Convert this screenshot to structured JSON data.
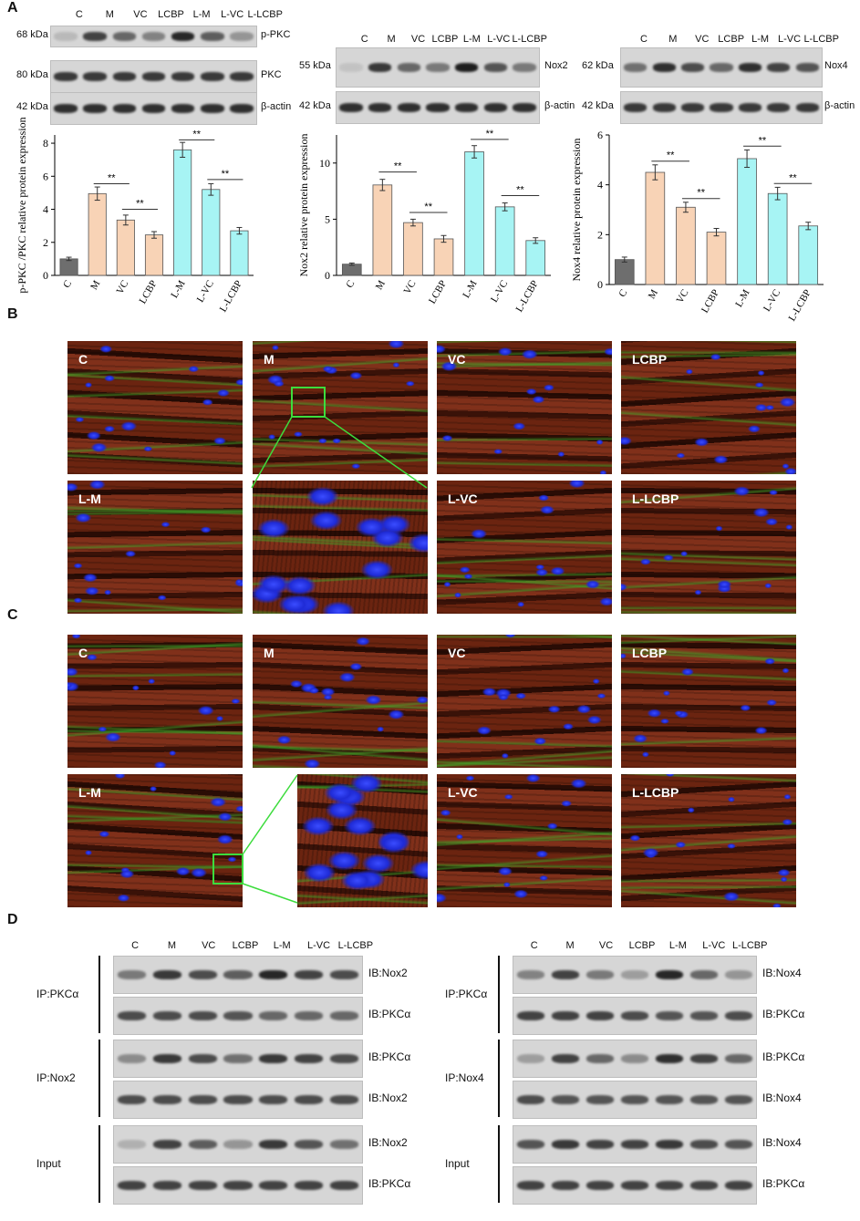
{
  "panels": {
    "A": "A",
    "B": "B",
    "C": "C",
    "D": "D"
  },
  "lanes": [
    "C",
    "M",
    "VC",
    "LCBP",
    "L-M",
    "L-VC",
    "L-LCBP"
  ],
  "bar_colors": [
    "#6e6e6e",
    "#f8d3b6",
    "#f8d3b6",
    "#f8d3b6",
    "#a7f4f4",
    "#a7f4f4",
    "#a7f4f4"
  ],
  "sig": "**",
  "blots_a": {
    "left": {
      "kda": [
        "68 kDa",
        "80 kDa",
        "42 kDa"
      ],
      "names": [
        "p-PKC",
        "PKC",
        "β-actin"
      ],
      "intensity": [
        [
          0.15,
          0.8,
          0.6,
          0.45,
          0.95,
          0.65,
          0.35
        ],
        [
          0.85,
          0.85,
          0.85,
          0.85,
          0.85,
          0.85,
          0.85
        ],
        [
          0.9,
          0.9,
          0.9,
          0.9,
          0.9,
          0.9,
          0.9
        ]
      ]
    },
    "mid": {
      "kda": [
        "55 kDa",
        "42 kDa"
      ],
      "names": [
        "Nox2",
        "β-actin"
      ],
      "intensity": [
        [
          0.1,
          0.85,
          0.6,
          0.5,
          1.0,
          0.7,
          0.5
        ],
        [
          0.9,
          0.9,
          0.9,
          0.9,
          0.9,
          0.9,
          0.9
        ]
      ]
    },
    "right": {
      "kda": [
        "62 kDa",
        "42 kDa"
      ],
      "names": [
        "Nox4",
        "β-actin"
      ],
      "intensity": [
        [
          0.55,
          0.9,
          0.75,
          0.6,
          0.9,
          0.8,
          0.7
        ],
        [
          0.85,
          0.85,
          0.85,
          0.85,
          0.85,
          0.85,
          0.85
        ]
      ]
    }
  },
  "chart_data": [
    {
      "type": "bar",
      "categories": [
        "C",
        "M",
        "VC",
        "LCBP",
        "L-M",
        "L-VC",
        "L-LCBP"
      ],
      "values": [
        1.0,
        4.95,
        3.35,
        2.45,
        7.6,
        5.2,
        2.7
      ],
      "errors": [
        0.1,
        0.4,
        0.3,
        0.2,
        0.45,
        0.35,
        0.2
      ],
      "ylabel": "p-PKC /PKC relative protein expression",
      "ylim": [
        0,
        8.5
      ],
      "yticks": [
        0,
        2,
        4,
        6,
        8
      ],
      "brackets": [
        {
          "from": 1,
          "to": 2,
          "y": 5.55,
          "label": "**"
        },
        {
          "from": 2,
          "to": 3,
          "y": 4.0,
          "label": "**"
        },
        {
          "from": 4,
          "to": 5,
          "y": 8.2,
          "label": "**"
        },
        {
          "from": 5,
          "to": 6,
          "y": 5.8,
          "label": "**"
        }
      ]
    },
    {
      "type": "bar",
      "categories": [
        "C",
        "M",
        "VC",
        "LCBP",
        "L-M",
        "L-VC",
        "L-LCBP"
      ],
      "values": [
        1.0,
        8.05,
        4.7,
        3.25,
        11.0,
        6.1,
        3.1
      ],
      "errors": [
        0.1,
        0.5,
        0.3,
        0.3,
        0.55,
        0.35,
        0.25
      ],
      "ylabel": "Nox2 relative protein expression",
      "ylim": [
        0,
        12.5
      ],
      "yticks": [
        0,
        5,
        10
      ],
      "brackets": [
        {
          "from": 1,
          "to": 2,
          "y": 9.2,
          "label": "**"
        },
        {
          "from": 2,
          "to": 3,
          "y": 5.6,
          "label": "**"
        },
        {
          "from": 4,
          "to": 5,
          "y": 12.1,
          "label": "**"
        },
        {
          "from": 5,
          "to": 6,
          "y": 7.1,
          "label": "**"
        }
      ]
    },
    {
      "type": "bar",
      "categories": [
        "C",
        "M",
        "VC",
        "LCBP",
        "L-M",
        "L-VC",
        "L-LCBP"
      ],
      "values": [
        1.0,
        4.5,
        3.1,
        2.1,
        5.05,
        3.65,
        2.35
      ],
      "errors": [
        0.1,
        0.3,
        0.2,
        0.15,
        0.35,
        0.25,
        0.15
      ],
      "ylabel": "Nox4 relative protein expression",
      "ylim": [
        0,
        6
      ],
      "yticks": [
        0,
        2,
        4,
        6
      ],
      "brackets": [
        {
          "from": 1,
          "to": 2,
          "y": 4.95,
          "label": "**"
        },
        {
          "from": 2,
          "to": 3,
          "y": 3.45,
          "label": "**"
        },
        {
          "from": 4,
          "to": 5,
          "y": 5.55,
          "label": "**"
        },
        {
          "from": 5,
          "to": 6,
          "y": 4.05,
          "label": "**"
        }
      ]
    }
  ],
  "micro_b": [
    "C",
    "M",
    "VC",
    "LCBP",
    "L-M",
    "",
    "L-VC",
    "L-LCBP"
  ],
  "micro_c": [
    "C",
    "M",
    "VC",
    "LCBP",
    "L-M",
    "",
    "L-VC",
    "L-LCBP"
  ],
  "panel_d": {
    "left": {
      "groups": [
        {
          "ip": "IP:PKCα",
          "rows": [
            {
              "ib": "IB:Nox2",
              "intensity": [
                0.5,
                0.85,
                0.75,
                0.65,
                0.95,
                0.8,
                0.75
              ]
            },
            {
              "ib": "IB:PKCα",
              "intensity": [
                0.75,
                0.75,
                0.75,
                0.7,
                0.6,
                0.6,
                0.6
              ]
            }
          ]
        },
        {
          "ip": "IP:Nox2",
          "rows": [
            {
              "ib": "IB:PKCα",
              "intensity": [
                0.4,
                0.85,
                0.75,
                0.55,
                0.85,
                0.8,
                0.75
              ]
            },
            {
              "ib": "IB:Nox2",
              "intensity": [
                0.75,
                0.75,
                0.75,
                0.75,
                0.75,
                0.75,
                0.75
              ]
            }
          ]
        },
        {
          "ip": "Input",
          "rows": [
            {
              "ib": "IB:Nox2",
              "intensity": [
                0.2,
                0.8,
                0.65,
                0.35,
                0.85,
                0.7,
                0.55
              ]
            },
            {
              "ib": "IB:PKCα",
              "intensity": [
                0.8,
                0.8,
                0.8,
                0.8,
                0.8,
                0.8,
                0.8
              ]
            }
          ]
        }
      ]
    },
    "right": {
      "groups": [
        {
          "ip": "IP:PKCα",
          "rows": [
            {
              "ib": "IB:Nox4",
              "intensity": [
                0.45,
                0.8,
                0.5,
                0.3,
                0.95,
                0.6,
                0.35
              ]
            },
            {
              "ib": "IB:PKCα",
              "intensity": [
                0.8,
                0.8,
                0.8,
                0.75,
                0.7,
                0.7,
                0.75
              ]
            }
          ]
        },
        {
          "ip": "IP:Nox4",
          "rows": [
            {
              "ib": "IB:PKCα",
              "intensity": [
                0.3,
                0.8,
                0.6,
                0.4,
                0.9,
                0.8,
                0.6
              ]
            },
            {
              "ib": "IB:Nox4",
              "intensity": [
                0.75,
                0.7,
                0.7,
                0.7,
                0.7,
                0.7,
                0.7
              ]
            }
          ]
        },
        {
          "ip": "Input",
          "rows": [
            {
              "ib": "IB:Nox4",
              "intensity": [
                0.7,
                0.85,
                0.8,
                0.8,
                0.85,
                0.75,
                0.7
              ]
            },
            {
              "ib": "IB:PKCα",
              "intensity": [
                0.8,
                0.8,
                0.8,
                0.8,
                0.8,
                0.8,
                0.8
              ]
            }
          ]
        }
      ]
    }
  }
}
